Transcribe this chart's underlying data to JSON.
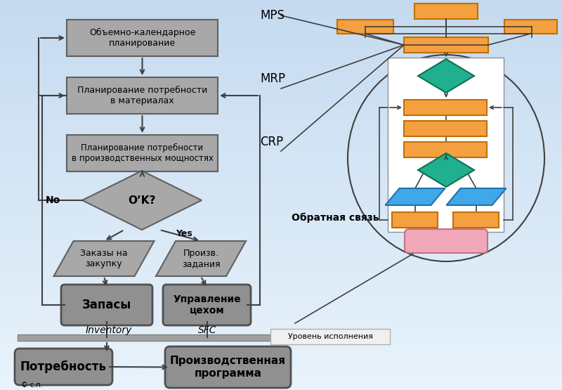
{
  "bg_top": "#c5daf0",
  "bg_bottom": "#e8f3fb",
  "gray_fc": "#a8a8a8",
  "gray_ec": "#606060",
  "dark_gray_fc": "#909090",
  "dark_gray_ec": "#505050",
  "orange": "#f5a040",
  "orange_ec": "#c07000",
  "teal": "#20b090",
  "teal_ec": "#107050",
  "blue_c": "#40a8e8",
  "blue_ec": "#2070b0",
  "pink_c": "#f0a8b8",
  "pink_ec": "#c07088",
  "arrow_color": "#404040",
  "white": "#ffffff",
  "mps_label": "MPS",
  "mrp_label": "MRP",
  "crp_label": "CRP",
  "sfc_label": "SFC",
  "inventory_label": "Inventory",
  "feedback_label": "Обратная связь",
  "level_label": "Уровень исполнения",
  "box1_text": "Объемно-календарное\nпланирование",
  "box2_text": "Планирование потребности\nв материалах",
  "box3_text": "Планирование потребности\nв производственных мощностях",
  "diamond_text": "O’K?",
  "box_zakaz_text": "Заказы на\nзакупку",
  "box_proiz_text": "Произв.\nзадания",
  "box_zapasy_text": "Запасы",
  "box_upravl_text": "Управление\nцехом",
  "box_potrebn_text": "Потребность",
  "box_progr_text": "Производственная\nпрограмма",
  "no_label": "No",
  "yes_label": "Yes",
  "copyright": "© с.п."
}
